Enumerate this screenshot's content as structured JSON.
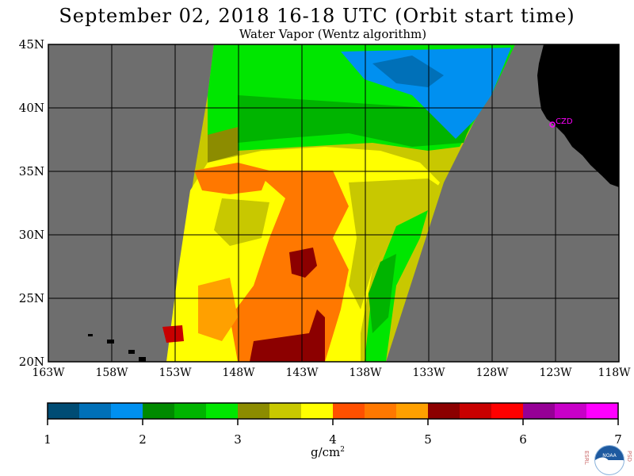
{
  "title": "September 02, 2018  16-18 UTC  (Orbit start time)",
  "subtitle": "Water Vapor (Wentz algorithm)",
  "lat_labels": [
    "45N",
    "40N",
    "35N",
    "30N",
    "25N",
    "20N"
  ],
  "lon_labels": [
    "163W",
    "158W",
    "153W",
    "148W",
    "143W",
    "138W",
    "133W",
    "128W",
    "123W",
    "118W"
  ],
  "colorbar": {
    "unit_base": "g/cm",
    "unit_sup": "2",
    "tick_labels": [
      "1",
      "2",
      "3",
      "4",
      "5",
      "6",
      "7"
    ],
    "colors": [
      "#004c74",
      "#0070b8",
      "#0090f0",
      "#008a00",
      "#00b400",
      "#00e600",
      "#8c8c00",
      "#c8c800",
      "#ffff00",
      "#ff5000",
      "#ff7800",
      "#ffa000",
      "#8c0000",
      "#c80000",
      "#ff0000",
      "#960096",
      "#c800c8",
      "#ff00ff"
    ]
  },
  "marker": {
    "label": "CZD",
    "color": "#ff00ff"
  },
  "logo": {
    "left_text": "ESRL",
    "right_text": "PSD",
    "center_text": "NOAA"
  },
  "colors": {
    "no_data": "#6e6e6e",
    "land": "#000000",
    "grid": "#000000"
  }
}
